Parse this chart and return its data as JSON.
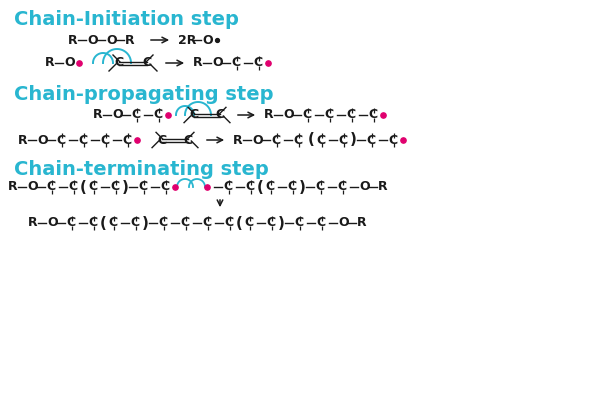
{
  "bg_color": "#ffffff",
  "cyan_color": "#29b6d0",
  "black_color": "#1a1a1a",
  "magenta_color": "#e0006e",
  "title1": "Chain-Initiation step",
  "title2": "Chain-propagating step",
  "title3": "Chain-terminating step",
  "title_fontsize": 14,
  "formula_fontsize": 9.0
}
